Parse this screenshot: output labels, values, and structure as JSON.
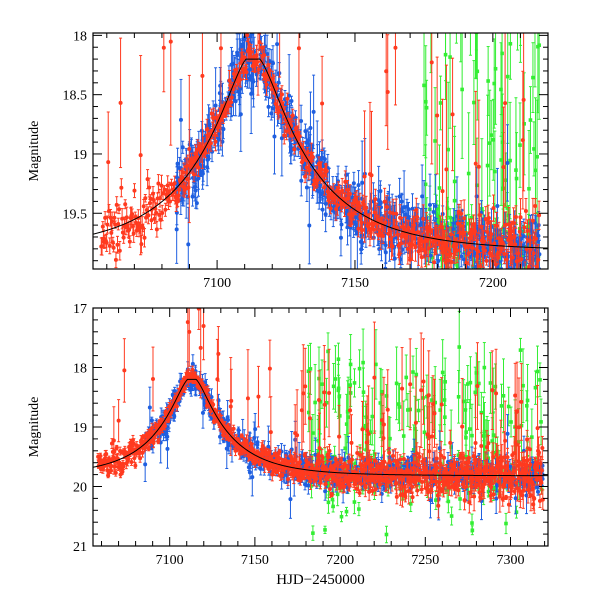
{
  "chart_data": [
    {
      "type": "scatter",
      "panel": "top",
      "title": "",
      "xlabel": "",
      "ylabel": "Magnitude",
      "xlim": [
        7055,
        7220
      ],
      "ylim": [
        19.97,
        17.98
      ],
      "y_inverted": true,
      "xticks": [
        7100,
        7150,
        7200
      ],
      "xtick_labels": [
        "7100",
        "7150",
        "7200"
      ],
      "yticks": [
        18,
        18.5,
        19,
        19.5
      ],
      "ytick_labels": [
        "18",
        "18.5",
        "19",
        "19.5"
      ],
      "series": [
        {
          "name": "red",
          "color": "#ff3a1f"
        },
        {
          "name": "blue",
          "color": "#1f5fe0"
        },
        {
          "name": "green",
          "color": "#33ee33"
        },
        {
          "name": "model",
          "color": "#000000"
        }
      ]
    },
    {
      "type": "scatter",
      "panel": "bottom",
      "title": "",
      "xlabel": "HJD−2450000",
      "ylabel": "Magnitude",
      "xlim": [
        7055,
        7322
      ],
      "ylim": [
        21,
        17
      ],
      "y_inverted": true,
      "xticks": [
        7100,
        7150,
        7200,
        7250,
        7300
      ],
      "xtick_labels": [
        "7100",
        "7150",
        "7200",
        "7250",
        "7300"
      ],
      "yticks": [
        17,
        18,
        19,
        20,
        21
      ],
      "ytick_labels": [
        "17",
        "18",
        "19",
        "20",
        "21"
      ],
      "series": [
        {
          "name": "red",
          "color": "#ff3a1f"
        },
        {
          "name": "blue",
          "color": "#1f5fe0"
        },
        {
          "name": "green",
          "color": "#33ee33"
        },
        {
          "name": "model",
          "color": "#000000"
        }
      ]
    }
  ]
}
